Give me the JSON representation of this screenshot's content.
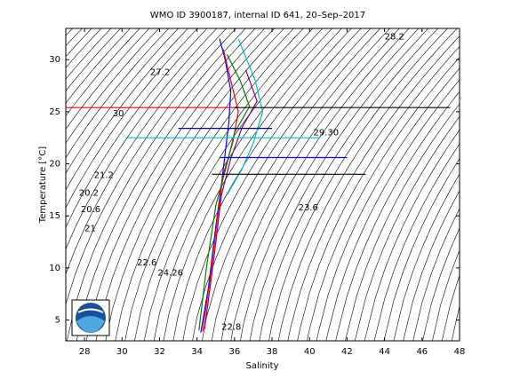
{
  "chart_data": {
    "type": "line",
    "title": "WMO ID 3900187, internal ID 641, 20–Sep–2017",
    "x_label": "Salinity",
    "y_label": "Temperature [°C]",
    "xlim": [
      27,
      48
    ],
    "ylim": [
      3,
      33
    ],
    "xticks": [
      28,
      30,
      32,
      34,
      36,
      38,
      40,
      42,
      44,
      46,
      48
    ],
    "yticks": [
      5,
      10,
      15,
      20,
      25,
      30
    ],
    "series": [
      {
        "color": "#0000ff",
        "x": [
          34.2,
          34.6,
          35.0,
          35.3,
          35.5,
          35.7,
          35.8,
          35.5,
          35.2
        ],
        "values": [
          3.8,
          8,
          14,
          18,
          21,
          24,
          27,
          30,
          32
        ]
      },
      {
        "color": "#ff0000",
        "x": [
          34.3,
          34.7,
          35.1,
          35.4,
          35.9,
          36.2,
          35.8,
          35.4
        ],
        "values": [
          3.9,
          9,
          15,
          19,
          22,
          25,
          28,
          31
        ]
      },
      {
        "color": "#008000",
        "x": [
          34.1,
          34.5,
          35.0,
          35.6,
          36.0,
          36.8,
          36.3,
          35.6
        ],
        "values": [
          4.0,
          10,
          16,
          20,
          23,
          25.5,
          28,
          30.5
        ]
      },
      {
        "color": "#800080",
        "x": [
          34.4,
          34.9,
          35.3,
          35.8,
          36.4,
          37.2,
          36.6
        ],
        "values": [
          4.1,
          11,
          17,
          20.5,
          23.5,
          26,
          29
        ]
      },
      {
        "color": "#00bfbf",
        "x": [
          35.6,
          36.4,
          37.0,
          37.5,
          37.1,
          36.2
        ],
        "values": [
          17,
          19.5,
          22,
          25,
          28,
          32
        ]
      },
      {
        "color": "#ff0000",
        "x": [
          27.0,
          36.2
        ],
        "values": [
          25.4,
          25.4
        ]
      },
      {
        "color": "#000000",
        "x": [
          36.0,
          47.5
        ],
        "values": [
          25.4,
          25.4
        ]
      },
      {
        "color": "#000000",
        "x": [
          34.8,
          43.0
        ],
        "values": [
          19.0,
          19.0
        ]
      },
      {
        "color": "#0000ff",
        "x": [
          35.2,
          42.0
        ],
        "values": [
          20.6,
          20.6
        ]
      },
      {
        "color": "#00bfbf",
        "x": [
          30.2,
          40.5
        ],
        "values": [
          22.5,
          22.5
        ]
      },
      {
        "color": "#000080",
        "x": [
          33.0,
          38.0
        ],
        "values": [
          23.4,
          23.4
        ]
      }
    ],
    "annotations": [
      {
        "text": "29.30",
        "x": 40.2,
        "y": 23.0
      },
      {
        "text": "30",
        "x": 29.5,
        "y": 24.8
      },
      {
        "text": "27.2",
        "x": 31.5,
        "y": 28.8
      },
      {
        "text": "21.2",
        "x": 28.5,
        "y": 18.9
      },
      {
        "text": "20.2",
        "x": 27.7,
        "y": 17.2
      },
      {
        "text": "20.6",
        "x": 27.8,
        "y": 15.6
      },
      {
        "text": "21",
        "x": 28.0,
        "y": 13.8
      },
      {
        "text": "22.6",
        "x": 30.8,
        "y": 10.5
      },
      {
        "text": "24.26",
        "x": 31.9,
        "y": 9.5
      },
      {
        "text": "23.6",
        "x": 39.4,
        "y": 15.8
      },
      {
        "text": "22.8",
        "x": 35.3,
        "y": 4.3
      },
      {
        "text": "28.2",
        "x": 44.0,
        "y": 32.2
      }
    ]
  }
}
